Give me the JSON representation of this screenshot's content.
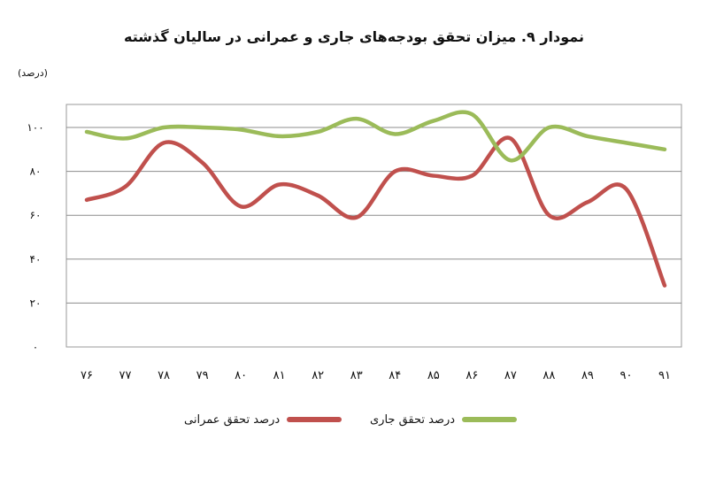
{
  "chart_data": {
    "type": "line",
    "title": "نمودار ۹. میزان تحقق بودجه‌های جاری و عمرانی در سالیان گذشته",
    "ylabel": "(درصد)",
    "xlabel": "",
    "categories": [
      "۷۶",
      "۷۷",
      "۷۸",
      "۷۹",
      "۸۰",
      "۸۱",
      "۸۲",
      "۸۳",
      "۸۴",
      "۸۵",
      "۸۶",
      "۸۷",
      "۸۸",
      "۸۹",
      "۹۰",
      "۹۱"
    ],
    "ylim": [
      0,
      100
    ],
    "yticks": [
      0,
      20,
      40,
      60,
      80,
      100
    ],
    "ytick_labels": [
      "۰",
      "۲۰",
      "۴۰",
      "۶۰",
      "۸۰",
      "۱۰۰"
    ],
    "grid": true,
    "legend_position": "bottom",
    "series": [
      {
        "name": "درصد تحقق عمرانی",
        "color": "#c0504d",
        "values": [
          67,
          73,
          93,
          84,
          64,
          74,
          69,
          59,
          80,
          78,
          78,
          95,
          60,
          66,
          72,
          28
        ]
      },
      {
        "name": "درصد تحقق جاری",
        "color": "#9bbb59",
        "values": [
          98,
          95,
          100,
          100,
          99,
          96,
          98,
          104,
          97,
          103,
          106,
          85,
          100,
          96,
          93,
          90
        ]
      }
    ]
  }
}
